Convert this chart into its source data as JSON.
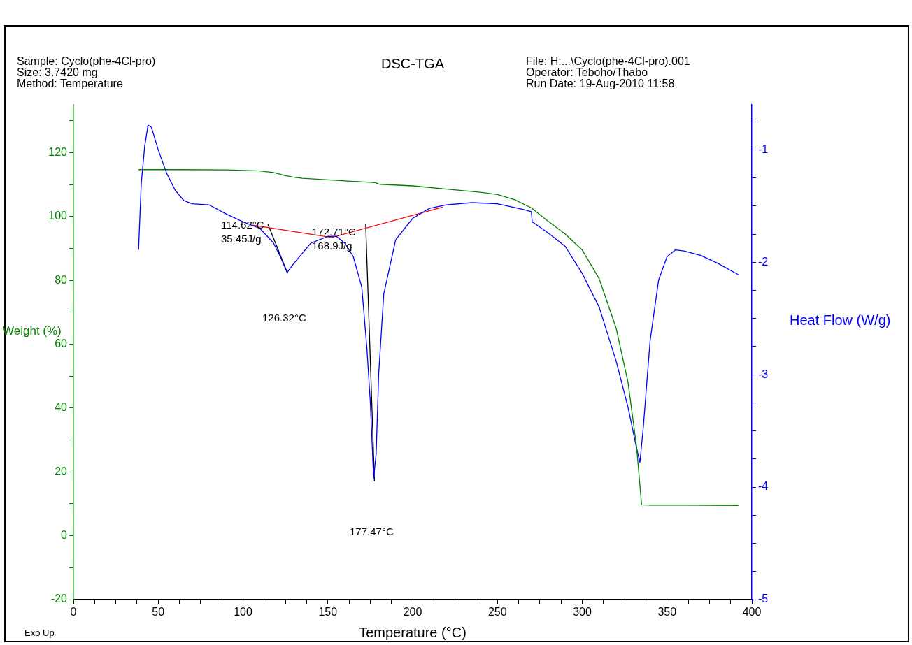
{
  "chart_data": {
    "type": "line",
    "title": "DSC-TGA",
    "xlabel": "Temperature (°C)",
    "ylabel": "Weight (%)",
    "y2label": "Heat Flow (W/g)",
    "xlim": [
      0,
      400
    ],
    "xticks": [
      0,
      {
        "value": 12.5,
        "label": null
      },
      {
        "value": 25,
        "label": null
      },
      {
        "value": 37.5,
        "label": null
      },
      50,
      {
        "value": 62.5,
        "label": null
      },
      {
        "value": 75,
        "label": null
      },
      {
        "value": 87.5,
        "label": null
      },
      100,
      {
        "value": 112.5,
        "label": null
      },
      {
        "value": 125,
        "label": null
      },
      {
        "value": 137.5,
        "label": null
      },
      150,
      {
        "value": 162.5,
        "label": null
      },
      {
        "value": 175,
        "label": null
      },
      {
        "value": 187.5,
        "label": null
      },
      200,
      {
        "value": 212.5,
        "label": null
      },
      {
        "value": 225,
        "label": null
      },
      {
        "value": 237.5,
        "label": null
      },
      250,
      {
        "value": 262.5,
        "label": null
      },
      {
        "value": 275,
        "label": null
      },
      {
        "value": 287.5,
        "label": null
      },
      300,
      {
        "value": 312.5,
        "label": null
      },
      {
        "value": 325,
        "label": null
      },
      {
        "value": 337.5,
        "label": null
      },
      350,
      {
        "value": 362.5,
        "label": null
      },
      {
        "value": 375,
        "label": null
      },
      {
        "value": 387.5,
        "label": null
      },
      400
    ],
    "ylim": [
      -20,
      135
    ],
    "yticks": [
      -20,
      {
        "value": -10,
        "label": null
      },
      0,
      {
        "value": 10,
        "label": null
      },
      20,
      {
        "value": 30,
        "label": null
      },
      40,
      {
        "value": 50,
        "label": null
      },
      60,
      {
        "value": 70,
        "label": null
      },
      80,
      {
        "value": 90,
        "label": null
      },
      100,
      {
        "value": 110,
        "label": null
      },
      120,
      {
        "value": 130,
        "label": null
      }
    ],
    "y2lim": [
      -5,
      -0.6
    ],
    "y2ticks": [
      -5,
      {
        "value": -4.75,
        "label": null
      },
      {
        "value": -4.5,
        "label": null
      },
      {
        "value": -4.25,
        "label": null
      },
      -4,
      {
        "value": -3.75,
        "label": null
      },
      {
        "value": -3.5,
        "label": null
      },
      {
        "value": -3.25,
        "label": null
      },
      -3,
      {
        "value": -2.75,
        "label": null
      },
      {
        "value": -2.5,
        "label": null
      },
      {
        "value": -2.25,
        "label": null
      },
      -2,
      {
        "value": -1.75,
        "label": null
      },
      {
        "value": -1.5,
        "label": null
      },
      {
        "value": -1.25,
        "label": null
      },
      -1,
      {
        "value": -0.75,
        "label": null
      }
    ],
    "grid": false,
    "legend": false,
    "series": [
      {
        "color": "#008000",
        "x": [
          38.4,
          60,
          90,
          110,
          118,
          125,
          130,
          135,
          150,
          178,
          180,
          181,
          200,
          220,
          240,
          250,
          260,
          270,
          280,
          290,
          300,
          310,
          320,
          327,
          332,
          335,
          340,
          360,
          392
        ],
        "values": [
          114.7,
          114.7,
          114.6,
          114.3,
          113.8,
          112.8,
          112.3,
          112.0,
          111.5,
          110.6,
          110.2,
          110.1,
          109.6,
          108.6,
          107.6,
          106.9,
          105.3,
          102.7,
          98.5,
          94.5,
          89.5,
          80.5,
          65,
          48,
          28,
          9.7,
          9.6,
          9.6,
          9.5
        ]
      },
      {
        "color": "#0000ff",
        "axis": "y2",
        "x": [
          38.4,
          40,
          42,
          44,
          46,
          50,
          55,
          60,
          65,
          70,
          80,
          90,
          100,
          110,
          118,
          122,
          126,
          130,
          140,
          150,
          155,
          160,
          165,
          170,
          173,
          175,
          177,
          178.5,
          180,
          183,
          190,
          200,
          210,
          220,
          235,
          250,
          265,
          270,
          270.5,
          280,
          290,
          300,
          310,
          320,
          327,
          332,
          334,
          336,
          340,
          345,
          350,
          355,
          360,
          370,
          380,
          392
        ],
        "values": [
          -1.89,
          -1.3,
          -0.97,
          -0.78,
          -0.8,
          -1.0,
          -1.21,
          -1.36,
          -1.45,
          -1.48,
          -1.49,
          -1.57,
          -1.64,
          -1.7,
          -1.83,
          -1.95,
          -2.09,
          -2.01,
          -1.83,
          -1.77,
          -1.77,
          -1.83,
          -1.95,
          -2.22,
          -2.76,
          -3.23,
          -3.92,
          -3.7,
          -2.99,
          -2.28,
          -1.8,
          -1.61,
          -1.52,
          -1.49,
          -1.47,
          -1.48,
          -1.53,
          -1.55,
          -1.64,
          -1.74,
          -1.86,
          -2.1,
          -2.4,
          -2.88,
          -3.29,
          -3.65,
          -3.78,
          -3.47,
          -2.7,
          -2.16,
          -1.95,
          -1.89,
          -1.9,
          -1.94,
          -2.01,
          -2.11
        ]
      },
      {
        "color": "#ff0000",
        "axis": "y2",
        "x": [
          105.6,
          152.2,
          217.7
        ],
        "values": [
          -1.67,
          -1.78,
          -1.51
        ]
      },
      {
        "color": "#000000",
        "axis": "y2",
        "x": [
          114.6,
          126.3
        ],
        "values": [
          -1.66,
          -2.1
        ]
      },
      {
        "color": "#000000",
        "axis": "y2",
        "x": [
          172.3,
          177.5
        ],
        "values": [
          -1.66,
          -3.95
        ]
      }
    ],
    "annotations": [
      "Sample: Cyclo(phe-4Cl-pro)",
      "Size:  3.7420 mg",
      "Method: Temperature",
      "File: H:...\\Cyclo(phe-4Cl-pro).001",
      "Operator: Teboho/Thabo",
      "Run Date: 19-Aug-2010 11:58",
      "Exo Up",
      "114.62°C",
      "35.45J/g",
      "172.71°C",
      "168.9J/g",
      "126.32°C",
      "177.47°C"
    ]
  }
}
